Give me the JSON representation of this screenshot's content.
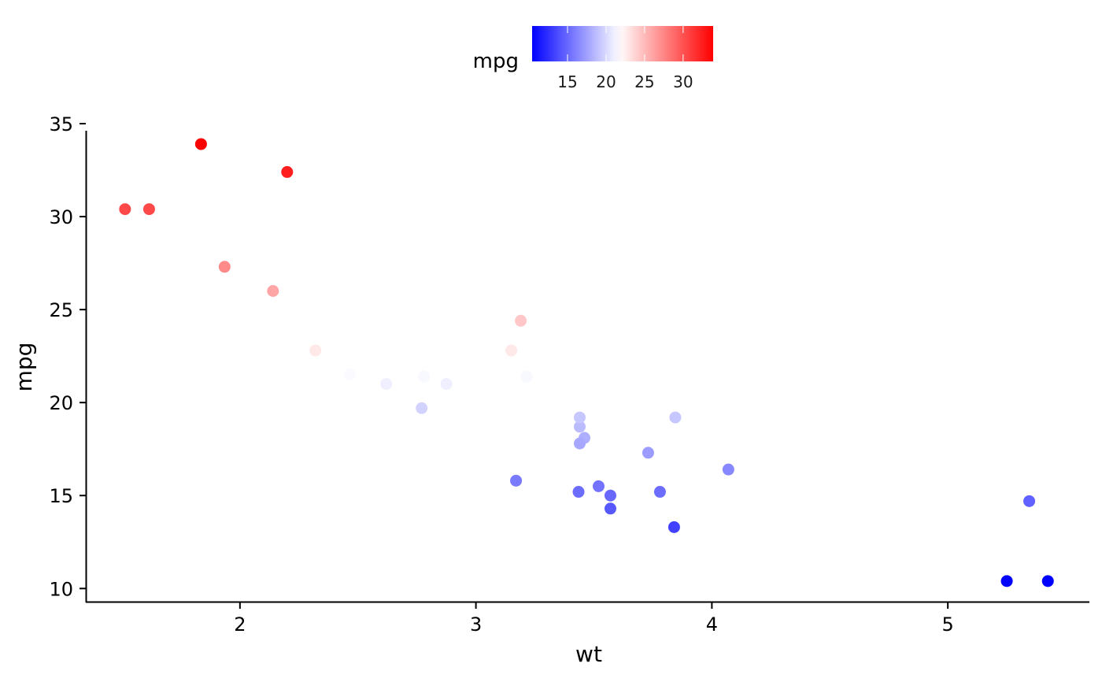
{
  "chart_data": {
    "type": "scatter",
    "title": "",
    "xlabel": "wt",
    "ylabel": "mpg",
    "xlim": [
      1.35,
      5.6
    ],
    "ylim": [
      9.25,
      35.0
    ],
    "x_ticks": [
      2,
      3,
      4,
      5
    ],
    "y_ticks": [
      10,
      15,
      20,
      25,
      30,
      35
    ],
    "x_tick_labels": [
      "2",
      "3",
      "4",
      "5"
    ],
    "y_tick_labels": [
      "10",
      "15",
      "20",
      "25",
      "30",
      "35"
    ],
    "grid": false,
    "color_by": "mpg",
    "legend": {
      "title": "mpg",
      "position": "top",
      "type": "colorbar",
      "breaks": [
        15,
        20,
        25,
        30
      ],
      "break_labels": [
        "15",
        "20",
        "25",
        "30"
      ],
      "range": [
        10.4,
        33.9
      ],
      "gradient": [
        "#0000ff",
        "#ffffff",
        "#ff0000"
      ],
      "midpoint": 21.7
    },
    "points": [
      {
        "x": 2.62,
        "y": 21.0
      },
      {
        "x": 2.875,
        "y": 21.0
      },
      {
        "x": 2.32,
        "y": 22.8
      },
      {
        "x": 3.215,
        "y": 21.4
      },
      {
        "x": 3.44,
        "y": 18.7
      },
      {
        "x": 3.46,
        "y": 18.1
      },
      {
        "x": 3.57,
        "y": 14.3
      },
      {
        "x": 3.19,
        "y": 24.4
      },
      {
        "x": 3.15,
        "y": 22.8
      },
      {
        "x": 3.44,
        "y": 19.2
      },
      {
        "x": 3.44,
        "y": 17.8
      },
      {
        "x": 4.07,
        "y": 16.4
      },
      {
        "x": 3.73,
        "y": 17.3
      },
      {
        "x": 3.78,
        "y": 15.2
      },
      {
        "x": 5.25,
        "y": 10.4
      },
      {
        "x": 5.424,
        "y": 10.4
      },
      {
        "x": 5.345,
        "y": 14.7
      },
      {
        "x": 2.2,
        "y": 32.4
      },
      {
        "x": 1.615,
        "y": 30.4
      },
      {
        "x": 1.835,
        "y": 33.9
      },
      {
        "x": 2.465,
        "y": 21.5
      },
      {
        "x": 3.52,
        "y": 15.5
      },
      {
        "x": 3.435,
        "y": 15.2
      },
      {
        "x": 3.84,
        "y": 13.3
      },
      {
        "x": 3.845,
        "y": 19.2
      },
      {
        "x": 1.935,
        "y": 27.3
      },
      {
        "x": 2.14,
        "y": 26.0
      },
      {
        "x": 1.513,
        "y": 30.4
      },
      {
        "x": 3.17,
        "y": 15.8
      },
      {
        "x": 2.77,
        "y": 19.7
      },
      {
        "x": 3.57,
        "y": 15.0
      },
      {
        "x": 2.78,
        "y": 21.4
      }
    ]
  }
}
